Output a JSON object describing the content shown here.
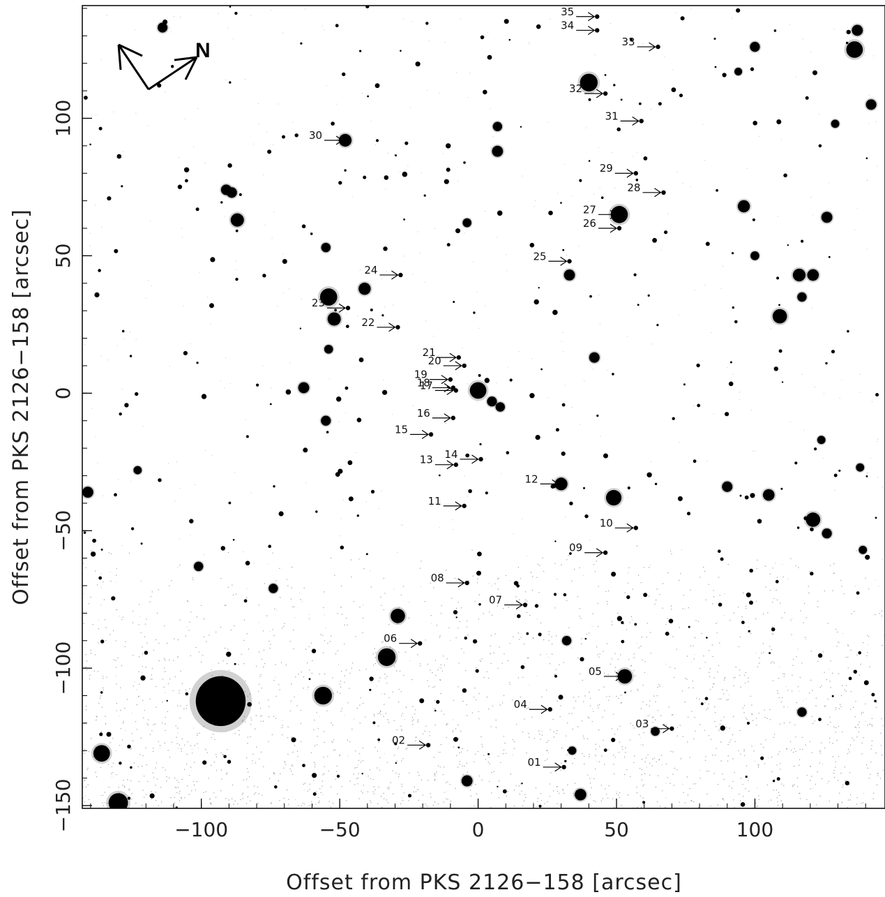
{
  "figure": {
    "xlabel": "Offset from PKS 2126−158 [arcsec]",
    "ylabel": "Offset from PKS 2126−158 [arcsec]",
    "compass_label": "N"
  },
  "axes": {
    "xlim": [
      -143,
      147
    ],
    "ylim": [
      -151,
      141
    ],
    "x_ticks": [
      -100,
      -50,
      0,
      50,
      100
    ],
    "x_tick_labels": [
      "−100",
      "−50",
      "0",
      "50",
      "100"
    ],
    "y_ticks": [
      -150,
      -100,
      -50,
      0,
      50,
      100
    ],
    "y_tick_labels": [
      "−150",
      "−100",
      "−50",
      "0",
      "50",
      "100"
    ]
  },
  "sources": [
    {
      "id": "01",
      "x": 31,
      "y": -136
    },
    {
      "id": "02",
      "x": -18,
      "y": -128
    },
    {
      "id": "03",
      "x": 70,
      "y": -122
    },
    {
      "id": "04",
      "x": 26,
      "y": -115
    },
    {
      "id": "05",
      "x": 53,
      "y": -103
    },
    {
      "id": "06",
      "x": -21,
      "y": -91
    },
    {
      "id": "07",
      "x": 17,
      "y": -77
    },
    {
      "id": "08",
      "x": -4,
      "y": -69
    },
    {
      "id": "09",
      "x": 46,
      "y": -58
    },
    {
      "id": "10",
      "x": 57,
      "y": -49
    },
    {
      "id": "11",
      "x": -5,
      "y": -41
    },
    {
      "id": "12",
      "x": 30,
      "y": -33
    },
    {
      "id": "13",
      "x": -8,
      "y": -26
    },
    {
      "id": "14",
      "x": 1,
      "y": -24
    },
    {
      "id": "15",
      "x": -17,
      "y": -15
    },
    {
      "id": "16",
      "x": -9,
      "y": -9
    },
    {
      "id": "17",
      "x": -8,
      "y": 1
    },
    {
      "id": "18",
      "x": -9,
      "y": 2
    },
    {
      "id": "19",
      "x": -10,
      "y": 5
    },
    {
      "id": "20",
      "x": -5,
      "y": 10
    },
    {
      "id": "21",
      "x": -7,
      "y": 13
    },
    {
      "id": "22",
      "x": -29,
      "y": 24
    },
    {
      "id": "23",
      "x": -47,
      "y": 31
    },
    {
      "id": "24",
      "x": -28,
      "y": 43
    },
    {
      "id": "25",
      "x": 33,
      "y": 48
    },
    {
      "id": "26",
      "x": 51,
      "y": 60
    },
    {
      "id": "27",
      "x": 51,
      "y": 65
    },
    {
      "id": "28",
      "x": 67,
      "y": 73
    },
    {
      "id": "29",
      "x": 57,
      "y": 80
    },
    {
      "id": "30",
      "x": -48,
      "y": 92
    },
    {
      "id": "31",
      "x": 59,
      "y": 99
    },
    {
      "id": "32",
      "x": 46,
      "y": 109
    },
    {
      "id": "33",
      "x": 65,
      "y": 126
    },
    {
      "id": "34",
      "x": 43,
      "y": 132
    },
    {
      "id": "35",
      "x": 43,
      "y": 137
    }
  ],
  "stars": [
    {
      "x": -93,
      "y": -112,
      "r": 9
    },
    {
      "x": -130,
      "y": -149,
      "r": 3.5
    },
    {
      "x": -136,
      "y": -131,
      "r": 3
    },
    {
      "x": -56,
      "y": -110,
      "r": 3.2
    },
    {
      "x": -33,
      "y": -96,
      "r": 3.2
    },
    {
      "x": -29,
      "y": -81,
      "r": 2.6
    },
    {
      "x": 53,
      "y": -103,
      "r": 2.6
    },
    {
      "x": 37,
      "y": -146,
      "r": 2.1
    },
    {
      "x": -4,
      "y": -141,
      "r": 2
    },
    {
      "x": 32,
      "y": -90,
      "r": 1.7
    },
    {
      "x": 49,
      "y": -38,
      "r": 2.8
    },
    {
      "x": 30,
      "y": -33,
      "r": 2.3
    },
    {
      "x": 0,
      "y": 1,
      "r": 3
    },
    {
      "x": 5,
      "y": -3,
      "r": 1.8
    },
    {
      "x": 8,
      "y": -5,
      "r": 1.7
    },
    {
      "x": -54,
      "y": 35,
      "r": 3.1
    },
    {
      "x": -52,
      "y": 27,
      "r": 2.4
    },
    {
      "x": -41,
      "y": 38,
      "r": 2.2
    },
    {
      "x": -48,
      "y": 92,
      "r": 2.3
    },
    {
      "x": -87,
      "y": 63,
      "r": 2.4
    },
    {
      "x": -89,
      "y": 73,
      "r": 1.9
    },
    {
      "x": -55,
      "y": 53,
      "r": 1.7
    },
    {
      "x": 40,
      "y": 113,
      "r": 3.2
    },
    {
      "x": 51,
      "y": 65,
      "r": 3.1
    },
    {
      "x": 33,
      "y": 43,
      "r": 2
    },
    {
      "x": 42,
      "y": 13,
      "r": 1.9
    },
    {
      "x": 109,
      "y": 28,
      "r": 2.6
    },
    {
      "x": 116,
      "y": 43,
      "r": 2.3
    },
    {
      "x": 121,
      "y": 43,
      "r": 2.1
    },
    {
      "x": 96,
      "y": 68,
      "r": 2.2
    },
    {
      "x": 126,
      "y": 64,
      "r": 2
    },
    {
      "x": 136,
      "y": 125,
      "r": 3
    },
    {
      "x": 137,
      "y": 132,
      "r": 2
    },
    {
      "x": 142,
      "y": 105,
      "r": 1.9
    },
    {
      "x": 100,
      "y": 126,
      "r": 1.8
    },
    {
      "x": 121,
      "y": -46,
      "r": 2.6
    },
    {
      "x": 126,
      "y": -51,
      "r": 1.8
    },
    {
      "x": 105,
      "y": -37,
      "r": 2.1
    },
    {
      "x": 90,
      "y": -34,
      "r": 1.9
    },
    {
      "x": 7,
      "y": 97,
      "r": 1.7
    },
    {
      "x": 7,
      "y": 88,
      "r": 2
    },
    {
      "x": -114,
      "y": 133,
      "r": 1.8
    },
    {
      "x": -91,
      "y": 74,
      "r": 1.9
    },
    {
      "x": 64,
      "y": -123,
      "r": 1.6
    },
    {
      "x": -4,
      "y": 62,
      "r": 1.6
    },
    {
      "x": 34,
      "y": -130,
      "r": 1.5
    },
    {
      "x": -101,
      "y": -63,
      "r": 1.7
    },
    {
      "x": -74,
      "y": -71,
      "r": 1.7
    },
    {
      "x": -54,
      "y": 16,
      "r": 1.6
    },
    {
      "x": -55,
      "y": -10,
      "r": 1.8
    },
    {
      "x": -63,
      "y": 2,
      "r": 2
    },
    {
      "x": -123,
      "y": -28,
      "r": 1.5
    },
    {
      "x": -141,
      "y": -36,
      "r": 2
    },
    {
      "x": 117,
      "y": -116,
      "r": 1.7
    },
    {
      "x": 124,
      "y": -17,
      "r": 1.5
    },
    {
      "x": 94,
      "y": 117,
      "r": 1.4
    },
    {
      "x": 138,
      "y": -27,
      "r": 1.5
    },
    {
      "x": 139,
      "y": -57,
      "r": 1.5
    },
    {
      "x": 100,
      "y": 50,
      "r": 1.6
    },
    {
      "x": 117,
      "y": 35,
      "r": 1.7
    },
    {
      "x": 129,
      "y": 98,
      "r": 1.5
    }
  ]
}
